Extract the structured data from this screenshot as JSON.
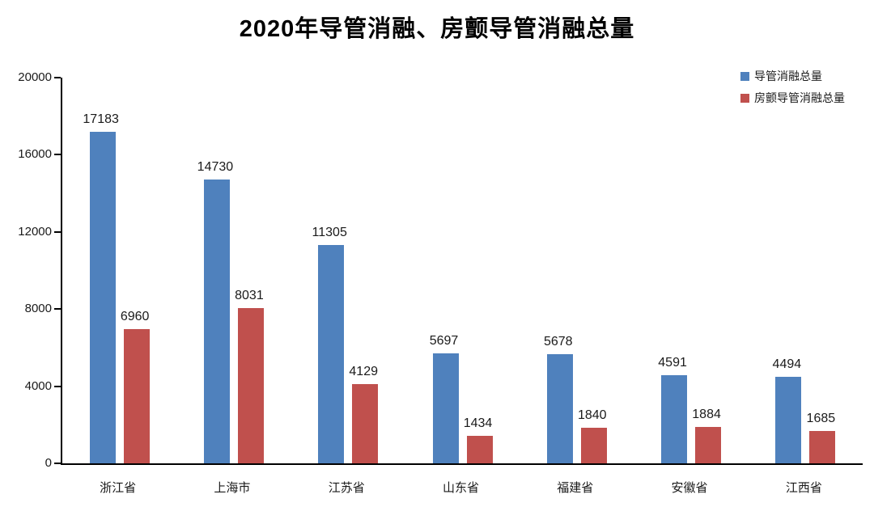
{
  "title": "2020年导管消融、房颤导管消融总量",
  "chart_data": {
    "type": "bar",
    "title": "2020年导管消融、房颤导管消融总量",
    "categories": [
      "浙江省",
      "上海市",
      "江苏省",
      "山东省",
      "福建省",
      "安徽省",
      "江西省"
    ],
    "series": [
      {
        "name": "导管消融总量",
        "color": "#4F81BD",
        "values": [
          17183,
          14730,
          11305,
          5697,
          5678,
          4591,
          4494
        ]
      },
      {
        "name": "房颤导管消融总量",
        "color": "#C0504D",
        "values": [
          6960,
          8031,
          4129,
          1434,
          1840,
          1884,
          1685
        ]
      }
    ],
    "xlabel": "",
    "ylabel": "",
    "ylim": [
      0,
      20000
    ],
    "yticks": [
      0,
      4000,
      8000,
      12000,
      16000,
      20000
    ],
    "grid": false,
    "data_labels": true,
    "legend_position": "top-right"
  }
}
